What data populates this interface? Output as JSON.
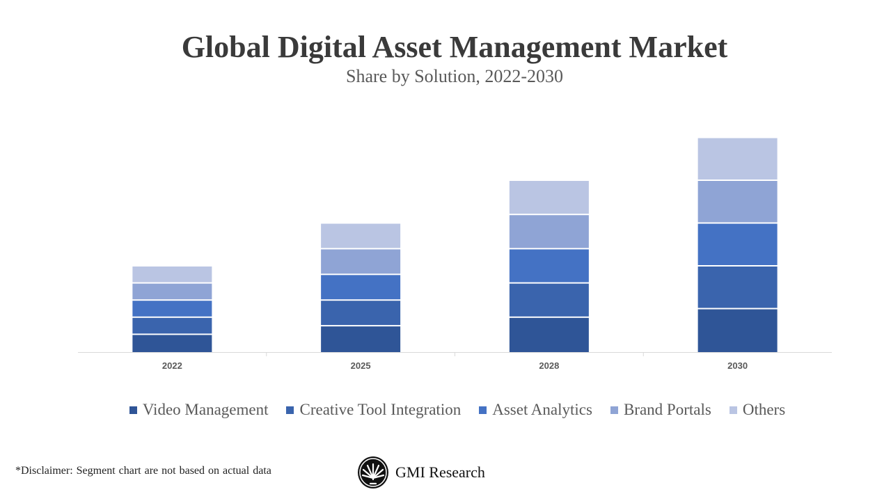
{
  "chart_data": {
    "type": "bar",
    "stacked": true,
    "title": "Global Digital Asset Management Market",
    "subtitle": "Share by Solution, 2022-2030",
    "xlabel": "",
    "ylabel": "",
    "categories": [
      "2022",
      "2025",
      "2028",
      "2030"
    ],
    "series": [
      {
        "name": "Video Management",
        "color": "#2F5597",
        "values": [
          2,
          3,
          4,
          5
        ]
      },
      {
        "name": "Creative Tool Integration",
        "color": "#3A64AD",
        "values": [
          2,
          3,
          4,
          5
        ]
      },
      {
        "name": "Asset Analytics",
        "color": "#4472C4",
        "values": [
          2,
          3,
          4,
          5
        ]
      },
      {
        "name": "Brand Portals",
        "color": "#8FA4D5",
        "values": [
          2,
          3,
          4,
          5
        ]
      },
      {
        "name": "Others",
        "color": "#BAC5E3",
        "values": [
          2,
          3,
          4,
          5
        ]
      }
    ],
    "y_axis_shown": false,
    "grid": false,
    "legend_position": "bottom"
  },
  "footer": {
    "disclaimer": "*Disclaimer:  Segment chart are not based on actual data",
    "brand": "GMI Research"
  }
}
